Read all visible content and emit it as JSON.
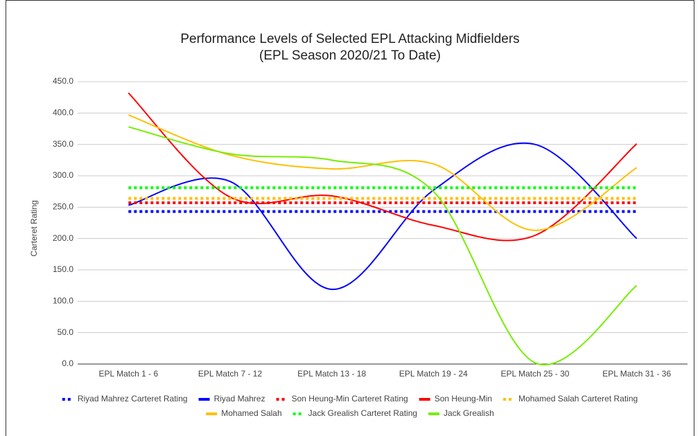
{
  "chart_data": {
    "type": "line",
    "title": "Performance Levels of Selected EPL Attacking Midfielders",
    "subtitle": "(EPL Season 2020/21 To Date)",
    "y_label": "Carteret Rating",
    "categories": [
      "EPL Match 1 - 6",
      "EPL Match 7 - 12",
      "EPL Match 13 - 18",
      "EPL Match 19 - 24",
      "EPL Match 25 - 30",
      "EPL Match 31 - 36"
    ],
    "ylim": [
      0,
      450
    ],
    "yticks": [
      {
        "value": 0,
        "label": "0.0"
      },
      {
        "value": 50,
        "label": "50.0"
      },
      {
        "value": 100,
        "label": "100.0"
      },
      {
        "value": 150,
        "label": "150.0"
      },
      {
        "value": 200,
        "label": "200.0"
      },
      {
        "value": 250,
        "label": "250.0"
      },
      {
        "value": 300,
        "label": "300.0"
      },
      {
        "value": 350,
        "label": "350.0"
      },
      {
        "value": 400,
        "label": "400.0"
      },
      {
        "value": 450,
        "label": "450.0"
      }
    ],
    "grid": true,
    "legend": "bottom",
    "series": [
      {
        "name": "Riyad Mahrez Carteret Rating",
        "color": "#0000ff",
        "style": "dotted",
        "values": [
          243,
          243,
          243,
          243,
          243,
          243
        ]
      },
      {
        "name": "Riyad Mahrez",
        "color": "#0000ff",
        "style": "smooth",
        "values": [
          253,
          291,
          119,
          277,
          350,
          200
        ]
      },
      {
        "name": "Son Heung-Min Carteret Rating",
        "color": "#ff0000",
        "style": "dotted",
        "values": [
          257,
          257,
          257,
          257,
          257,
          257
        ]
      },
      {
        "name": "Son Heung-Min",
        "color": "#ff0000",
        "style": "smooth",
        "values": [
          432,
          266,
          268,
          221,
          205,
          351
        ]
      },
      {
        "name": "Mohamed Salah Carteret Rating",
        "color": "#ffc000",
        "style": "dotted",
        "values": [
          264,
          264,
          264,
          264,
          264,
          264
        ]
      },
      {
        "name": "Mohamed Salah",
        "color": "#ffc000",
        "style": "smooth",
        "values": [
          397,
          333,
          311,
          319,
          213,
          313
        ]
      },
      {
        "name": "Jack Grealish Carteret Rating",
        "color": "#00ff00",
        "style": "dotted",
        "values": [
          281,
          281,
          281,
          281,
          281,
          281
        ]
      },
      {
        "name": "Jack Grealish",
        "color": "#76ee00",
        "style": "smooth",
        "values": [
          378,
          335,
          325,
          275,
          2,
          125
        ]
      }
    ]
  }
}
